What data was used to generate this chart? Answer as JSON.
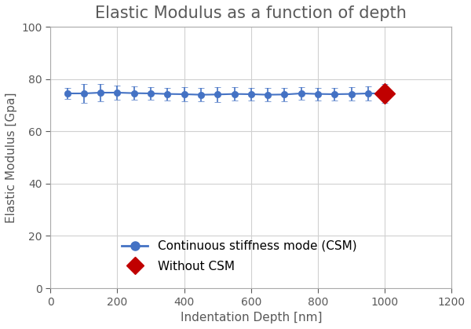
{
  "title": "Elastic Modulus as a function of depth",
  "xlabel": "Indentation Depth [nm]",
  "ylabel": "Elastic Modulus [Gpa]",
  "xlim": [
    0,
    1200
  ],
  "ylim": [
    0,
    100
  ],
  "xticks": [
    0,
    200,
    400,
    600,
    800,
    1000,
    1200
  ],
  "yticks": [
    0,
    20,
    40,
    60,
    80,
    100
  ],
  "csm_x": [
    50,
    100,
    150,
    200,
    250,
    300,
    350,
    400,
    450,
    500,
    550,
    600,
    650,
    700,
    750,
    800,
    850,
    900,
    950,
    1000
  ],
  "csm_y": [
    74.5,
    74.5,
    74.8,
    74.8,
    74.6,
    74.5,
    74.3,
    74.2,
    74.0,
    74.1,
    74.3,
    74.2,
    74.0,
    74.1,
    74.5,
    74.3,
    74.2,
    74.3,
    74.5,
    74.5
  ],
  "csm_yerr": [
    2.0,
    3.5,
    3.2,
    2.8,
    2.6,
    2.5,
    2.4,
    2.6,
    2.5,
    2.8,
    2.5,
    2.4,
    2.5,
    2.6,
    2.5,
    2.4,
    2.5,
    2.6,
    2.8,
    3.5
  ],
  "no_csm_x": 1000,
  "no_csm_y": 74.5,
  "no_csm_yerr": 2.5,
  "csm_color": "#4472C4",
  "no_csm_color": "#C00000",
  "background_color": "#ffffff",
  "grid_color": "#d0d0d0",
  "text_color": "#595959",
  "legend_csm_label": "Continuous stiffness mode (CSM)",
  "legend_no_csm_label": "Without CSM",
  "title_fontsize": 15,
  "axis_label_fontsize": 11,
  "tick_fontsize": 10,
  "legend_fontsize": 11
}
